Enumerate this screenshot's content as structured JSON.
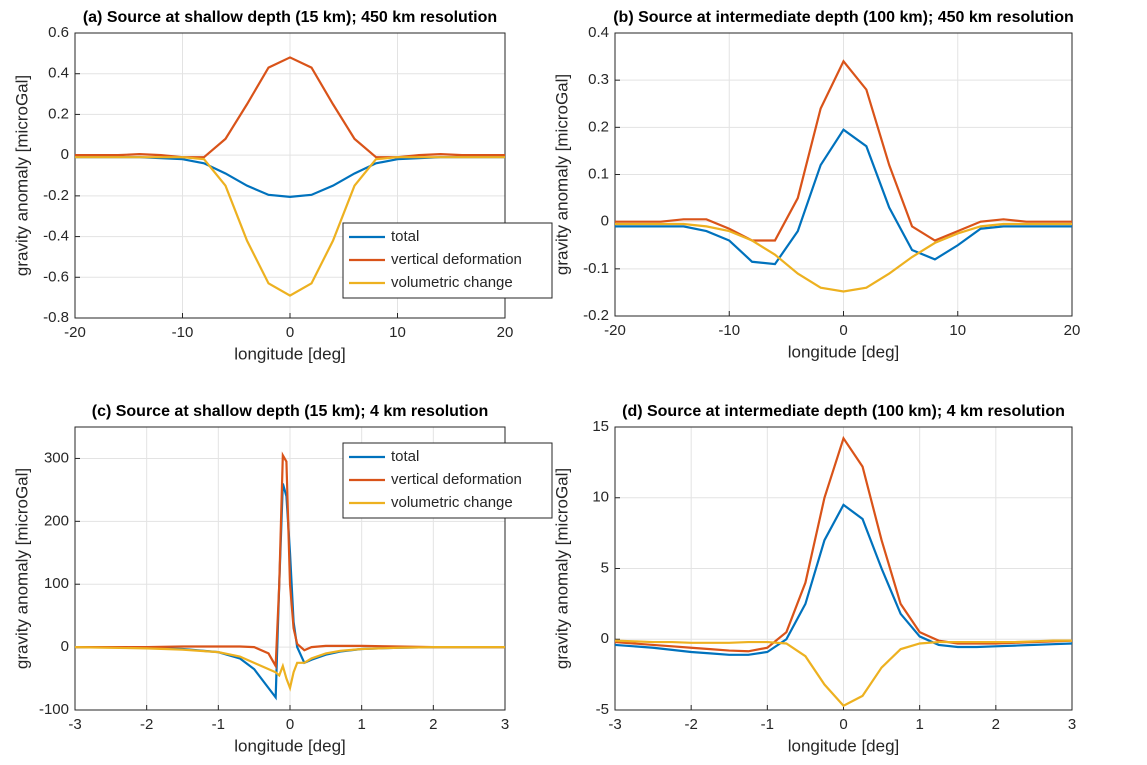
{
  "chart_data": [
    {
      "type": "line",
      "title": "(a) Source at shallow depth (15 km); 450 km resolution",
      "xlabel": "longitude [deg]",
      "ylabel": "gravity anomaly [microGal]",
      "x": [
        -20,
        -18,
        -16,
        -14,
        -12,
        -10,
        -8,
        -6,
        -4,
        -2,
        0,
        2,
        4,
        6,
        8,
        10,
        12,
        14,
        16,
        18,
        20
      ],
      "series": [
        {
          "name": "total",
          "color": "#0072BD",
          "values": [
            -0.01,
            -0.01,
            -0.01,
            -0.01,
            -0.015,
            -0.02,
            -0.04,
            -0.09,
            -0.15,
            -0.195,
            -0.205,
            -0.195,
            -0.15,
            -0.09,
            -0.04,
            -0.02,
            -0.015,
            -0.01,
            -0.01,
            -0.01,
            -0.01
          ]
        },
        {
          "name": "vertical deformation",
          "color": "#D95319",
          "values": [
            0,
            0,
            0,
            0.005,
            0,
            -0.01,
            -0.01,
            0.08,
            0.25,
            0.43,
            0.48,
            0.43,
            0.25,
            0.08,
            -0.01,
            -0.01,
            0,
            0.005,
            0,
            0,
            0
          ]
        },
        {
          "name": "volumetric change",
          "color": "#EDB120",
          "values": [
            -0.01,
            -0.01,
            -0.01,
            -0.01,
            -0.01,
            -0.01,
            -0.02,
            -0.15,
            -0.42,
            -0.63,
            -0.69,
            -0.63,
            -0.42,
            -0.15,
            -0.02,
            -0.01,
            -0.01,
            -0.01,
            -0.01,
            -0.01,
            -0.01
          ]
        }
      ],
      "xlim": [
        -20,
        20
      ],
      "ylim": [
        -0.8,
        0.6
      ],
      "xticks": [
        -20,
        -10,
        0,
        10,
        20
      ],
      "yticks": [
        -0.8,
        -0.6,
        -0.4,
        -0.2,
        0,
        0.2,
        0.4,
        0.6
      ],
      "grid": true,
      "legend": "lower right"
    },
    {
      "type": "line",
      "title": "(b) Source at intermediate depth (100 km); 450 km resolution",
      "xlabel": "longitude [deg]",
      "ylabel": "gravity anomaly [microGal]",
      "x": [
        -20,
        -18,
        -16,
        -14,
        -12,
        -10,
        -8,
        -6,
        -4,
        -2,
        0,
        2,
        4,
        6,
        8,
        10,
        12,
        14,
        16,
        18,
        20
      ],
      "series": [
        {
          "color": "#0072BD",
          "values": [
            -0.01,
            -0.01,
            -0.01,
            -0.01,
            -0.02,
            -0.04,
            -0.085,
            -0.09,
            -0.02,
            0.12,
            0.195,
            0.16,
            0.03,
            -0.06,
            -0.08,
            -0.05,
            -0.015,
            -0.01,
            -0.01,
            -0.01,
            -0.01
          ]
        },
        {
          "color": "#D95319",
          "values": [
            0,
            0,
            0,
            0.005,
            0.005,
            -0.015,
            -0.04,
            -0.04,
            0.05,
            0.24,
            0.34,
            0.28,
            0.12,
            -0.01,
            -0.04,
            -0.02,
            0,
            0.005,
            0,
            0,
            0
          ]
        },
        {
          "color": "#EDB120",
          "values": [
            -0.005,
            -0.005,
            -0.005,
            -0.005,
            -0.01,
            -0.02,
            -0.04,
            -0.07,
            -0.11,
            -0.14,
            -0.148,
            -0.14,
            -0.11,
            -0.075,
            -0.045,
            -0.025,
            -0.01,
            -0.005,
            -0.005,
            -0.005,
            -0.005
          ]
        }
      ],
      "xlim": [
        -20,
        20
      ],
      "ylim": [
        -0.2,
        0.4
      ],
      "xticks": [
        -20,
        -10,
        0,
        10,
        20
      ],
      "yticks": [
        -0.2,
        -0.1,
        0,
        0.1,
        0.2,
        0.3,
        0.4
      ],
      "grid": true
    },
    {
      "type": "line",
      "title": "(c) Source at shallow depth (15 km); 4 km resolution",
      "xlabel": "longitude [deg]",
      "ylabel": "gravity anomaly [microGal]",
      "x": [
        -3,
        -2.5,
        -2,
        -1.5,
        -1,
        -0.7,
        -0.5,
        -0.3,
        -0.2,
        -0.15,
        -0.1,
        -0.05,
        0,
        0.05,
        0.1,
        0.2,
        0.3,
        0.5,
        0.7,
        1,
        1.5,
        2,
        2.5,
        3
      ],
      "series": [
        {
          "name": "total",
          "color": "#0072BD",
          "values": [
            0,
            0,
            -1,
            -3,
            -8,
            -18,
            -35,
            -65,
            -80,
            100,
            260,
            240,
            150,
            40,
            0,
            -25,
            -20,
            -12,
            -7,
            -3,
            -1,
            0,
            0,
            0
          ]
        },
        {
          "name": "vertical deformation",
          "color": "#D95319",
          "values": [
            0,
            0,
            0,
            1,
            1,
            1,
            0,
            -10,
            -30,
            100,
            305,
            295,
            100,
            30,
            5,
            -5,
            0,
            2,
            2,
            2,
            1,
            0,
            0,
            0
          ]
        },
        {
          "name": "volumetric change",
          "color": "#EDB120",
          "values": [
            0,
            -1,
            -2,
            -4,
            -8,
            -15,
            -25,
            -35,
            -40,
            -45,
            -30,
            -50,
            -65,
            -40,
            -25,
            -25,
            -18,
            -10,
            -6,
            -3,
            -1,
            0,
            0,
            0
          ]
        }
      ],
      "xlim": [
        -3,
        3
      ],
      "ylim": [
        -100,
        350
      ],
      "xticks": [
        -3,
        -2,
        -1,
        0,
        1,
        2,
        3
      ],
      "yticks": [
        -100,
        0,
        100,
        200,
        300
      ],
      "grid": true,
      "legend": "upper right"
    },
    {
      "type": "line",
      "title": "(d) Source at intermediate depth (100 km); 4 km resolution",
      "xlabel": "longitude [deg]",
      "ylabel": "gravity anomaly [microGal]",
      "x": [
        -3,
        -2.75,
        -2.5,
        -2.25,
        -2,
        -1.75,
        -1.5,
        -1.25,
        -1,
        -0.75,
        -0.5,
        -0.25,
        0,
        0.25,
        0.5,
        0.75,
        1,
        1.25,
        1.5,
        1.75,
        2,
        2.25,
        2.5,
        2.75,
        3
      ],
      "series": [
        {
          "color": "#0072BD",
          "values": [
            -0.4,
            -0.5,
            -0.6,
            -0.75,
            -0.9,
            -1.0,
            -1.1,
            -1.1,
            -0.9,
            0,
            2.5,
            7,
            9.5,
            8.5,
            5,
            1.8,
            0.2,
            -0.4,
            -0.55,
            -0.55,
            -0.5,
            -0.45,
            -0.4,
            -0.35,
            -0.3
          ]
        },
        {
          "color": "#D95319",
          "values": [
            -0.2,
            -0.3,
            -0.4,
            -0.5,
            -0.6,
            -0.7,
            -0.8,
            -0.85,
            -0.6,
            0.5,
            4,
            10,
            14.2,
            12.2,
            7,
            2.5,
            0.5,
            -0.1,
            -0.3,
            -0.3,
            -0.3,
            -0.25,
            -0.2,
            -0.15,
            -0.1
          ]
        },
        {
          "color": "#EDB120",
          "values": [
            -0.1,
            -0.15,
            -0.2,
            -0.2,
            -0.25,
            -0.25,
            -0.25,
            -0.2,
            -0.2,
            -0.3,
            -1.2,
            -3.2,
            -4.7,
            -4.0,
            -2.0,
            -0.7,
            -0.3,
            -0.2,
            -0.2,
            -0.2,
            -0.2,
            -0.2,
            -0.15,
            -0.1,
            -0.1
          ]
        }
      ],
      "xlim": [
        -3,
        3
      ],
      "ylim": [
        -5,
        15
      ],
      "xticks": [
        -3,
        -2,
        -1,
        0,
        1,
        2,
        3
      ],
      "yticks": [
        -5,
        0,
        5,
        10,
        15
      ],
      "grid": true
    }
  ]
}
